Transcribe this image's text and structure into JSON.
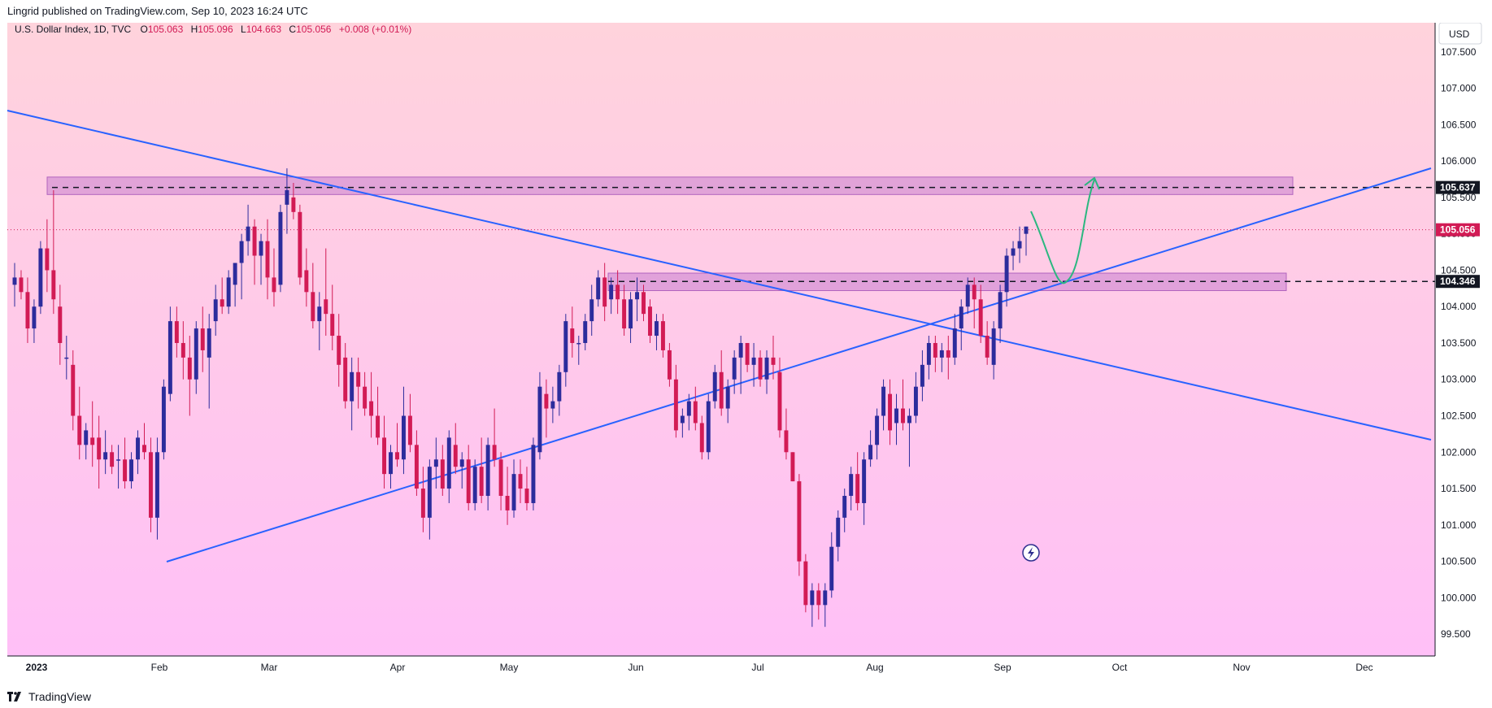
{
  "header": {
    "published": "Lingrid published on TradingView.com, Sep 10, 2023 16:24 UTC"
  },
  "footer": {
    "brand": "TradingView"
  },
  "colors": {
    "up": "#2c2c9c",
    "down": "#d21b55",
    "trendline": "#2962ff",
    "zone": "#c97fd0",
    "arrow": "#2bb77f",
    "bg_top": "#ffd1dc",
    "bg_bottom": "#ffc0f6"
  },
  "chart_data": {
    "type": "candlestick",
    "symbol": "U.S. Dollar Index, 1D, TVC",
    "ohlc": {
      "o_label": "O",
      "o": "105.063",
      "h_label": "H",
      "h": "105.096",
      "l_label": "L",
      "l": "104.663",
      "c_label": "C",
      "c": "105.056",
      "change": "+0.008 (+0.01%)"
    },
    "currency_button": "USD",
    "y_ticks": [
      "107.500",
      "107.000",
      "106.500",
      "106.000",
      "105.500",
      "105.000",
      "104.500",
      "104.000",
      "103.500",
      "103.000",
      "102.500",
      "102.000",
      "101.500",
      "101.000",
      "100.500",
      "100.000",
      "99.500"
    ],
    "y_range": [
      99.2,
      107.9
    ],
    "x_labels": [
      "2023",
      "Feb",
      "Mar",
      "Apr",
      "May",
      "Jun",
      "Jul",
      "Aug",
      "Sep",
      "Oct",
      "Nov",
      "Dec"
    ],
    "price_labels": [
      {
        "text": "105.637",
        "value": 105.637,
        "color": "#131722"
      },
      {
        "text": "105.056",
        "value": 105.056,
        "color": "#d21b55"
      },
      {
        "text": "104.346",
        "value": 104.346,
        "color": "#131722"
      }
    ],
    "candles": [
      [
        104.3,
        104.6,
        104.0,
        104.4
      ],
      [
        104.4,
        104.5,
        104.1,
        104.2
      ],
      [
        104.2,
        104.4,
        103.5,
        103.7
      ],
      [
        103.7,
        104.1,
        103.5,
        104.0
      ],
      [
        104.0,
        104.9,
        103.9,
        104.8
      ],
      [
        104.8,
        105.2,
        104.2,
        104.5
      ],
      [
        104.5,
        105.6,
        103.9,
        104.1
      ],
      [
        104.0,
        104.3,
        103.2,
        103.5
      ],
      [
        103.3,
        103.6,
        103.0,
        103.3
      ],
      [
        103.2,
        103.4,
        102.3,
        102.5
      ],
      [
        102.5,
        102.9,
        101.9,
        102.1
      ],
      [
        102.1,
        102.4,
        101.9,
        102.3
      ],
      [
        102.2,
        102.7,
        101.8,
        102.1
      ],
      [
        102.2,
        102.5,
        101.5,
        101.9
      ],
      [
        101.9,
        102.3,
        101.7,
        102.0
      ],
      [
        102.0,
        102.1,
        101.7,
        101.8
      ],
      [
        101.9,
        102.1,
        101.5,
        101.9
      ],
      [
        101.9,
        102.2,
        101.5,
        101.6
      ],
      [
        101.6,
        102.0,
        101.5,
        101.9
      ],
      [
        101.9,
        102.3,
        101.7,
        102.2
      ],
      [
        102.1,
        102.4,
        101.9,
        102.0
      ],
      [
        102.0,
        102.2,
        100.9,
        101.1
      ],
      [
        101.1,
        102.2,
        100.8,
        102.0
      ],
      [
        102.0,
        103.0,
        101.9,
        102.9
      ],
      [
        102.8,
        104.0,
        102.7,
        103.8
      ],
      [
        103.8,
        104.0,
        103.3,
        103.5
      ],
      [
        103.5,
        103.8,
        103.0,
        103.3
      ],
      [
        103.3,
        103.6,
        102.5,
        103.0
      ],
      [
        103.0,
        103.8,
        102.8,
        103.7
      ],
      [
        103.7,
        104.0,
        103.1,
        103.4
      ],
      [
        103.3,
        103.9,
        102.6,
        103.7
      ],
      [
        103.8,
        104.3,
        103.6,
        104.1
      ],
      [
        104.1,
        104.4,
        103.9,
        104.0
      ],
      [
        104.0,
        104.5,
        103.9,
        104.4
      ],
      [
        104.3,
        104.6,
        104.0,
        104.6
      ],
      [
        104.6,
        105.0,
        104.1,
        104.9
      ],
      [
        104.9,
        105.4,
        104.7,
        105.1
      ],
      [
        105.1,
        105.2,
        104.3,
        104.7
      ],
      [
        104.7,
        105.0,
        104.3,
        104.9
      ],
      [
        104.9,
        105.2,
        104.1,
        104.4
      ],
      [
        104.4,
        104.8,
        104.0,
        104.2
      ],
      [
        104.3,
        105.4,
        104.2,
        105.3
      ],
      [
        105.4,
        105.9,
        105.0,
        105.6
      ],
      [
        105.5,
        105.7,
        105.2,
        105.3
      ],
      [
        105.3,
        105.4,
        104.3,
        104.4
      ],
      [
        104.5,
        104.8,
        104.0,
        104.2
      ],
      [
        104.2,
        104.6,
        103.7,
        103.8
      ],
      [
        103.8,
        104.2,
        103.4,
        104.0
      ],
      [
        104.1,
        104.8,
        103.6,
        103.9
      ],
      [
        103.9,
        104.3,
        103.4,
        103.6
      ],
      [
        103.6,
        103.9,
        102.9,
        103.2
      ],
      [
        103.3,
        103.5,
        102.6,
        102.7
      ],
      [
        102.7,
        103.3,
        102.3,
        103.1
      ],
      [
        103.1,
        103.3,
        102.6,
        102.9
      ],
      [
        102.9,
        103.1,
        102.5,
        102.6
      ],
      [
        102.7,
        103.1,
        102.2,
        102.5
      ],
      [
        102.5,
        102.9,
        102.1,
        102.2
      ],
      [
        102.2,
        102.5,
        101.5,
        101.7
      ],
      [
        101.7,
        102.1,
        101.5,
        102.0
      ],
      [
        102.0,
        102.4,
        101.8,
        101.9
      ],
      [
        101.9,
        102.9,
        101.7,
        102.5
      ],
      [
        102.5,
        102.8,
        102.0,
        102.1
      ],
      [
        102.1,
        102.3,
        101.4,
        101.5
      ],
      [
        101.5,
        101.8,
        100.9,
        101.1
      ],
      [
        101.1,
        101.9,
        100.8,
        101.8
      ],
      [
        101.8,
        102.2,
        101.5,
        101.9
      ],
      [
        101.9,
        102.1,
        101.4,
        101.5
      ],
      [
        101.5,
        102.3,
        101.3,
        102.2
      ],
      [
        102.1,
        102.4,
        101.7,
        101.8
      ],
      [
        101.8,
        102.0,
        101.5,
        101.9
      ],
      [
        101.9,
        102.1,
        101.2,
        101.3
      ],
      [
        101.3,
        101.9,
        101.2,
        101.8
      ],
      [
        101.8,
        102.2,
        101.3,
        101.4
      ],
      [
        101.4,
        102.2,
        101.2,
        102.1
      ],
      [
        102.1,
        102.6,
        101.8,
        101.9
      ],
      [
        101.9,
        102.0,
        101.2,
        101.4
      ],
      [
        101.4,
        101.8,
        101.0,
        101.2
      ],
      [
        101.2,
        101.9,
        101.1,
        101.7
      ],
      [
        101.7,
        101.9,
        101.3,
        101.5
      ],
      [
        101.5,
        101.8,
        101.2,
        101.3
      ],
      [
        101.3,
        102.2,
        101.2,
        102.1
      ],
      [
        102.0,
        103.1,
        101.9,
        102.9
      ],
      [
        102.8,
        103.0,
        102.2,
        102.6
      ],
      [
        102.6,
        102.9,
        102.4,
        102.7
      ],
      [
        102.7,
        103.2,
        102.5,
        103.1
      ],
      [
        103.1,
        103.9,
        102.9,
        103.8
      ],
      [
        103.7,
        104.0,
        103.3,
        103.5
      ],
      [
        103.5,
        103.6,
        103.2,
        103.5
      ],
      [
        103.5,
        103.9,
        103.4,
        103.8
      ],
      [
        103.8,
        104.3,
        103.6,
        104.1
      ],
      [
        104.1,
        104.5,
        104.0,
        104.4
      ],
      [
        104.4,
        104.6,
        103.8,
        104.0
      ],
      [
        104.1,
        104.4,
        103.9,
        104.3
      ],
      [
        104.3,
        104.5,
        103.9,
        104.1
      ],
      [
        104.1,
        104.3,
        103.6,
        103.7
      ],
      [
        103.7,
        104.2,
        103.5,
        104.1
      ],
      [
        104.1,
        104.4,
        103.8,
        104.2
      ],
      [
        104.2,
        104.3,
        103.8,
        103.9
      ],
      [
        104.0,
        104.1,
        103.5,
        103.6
      ],
      [
        103.6,
        103.9,
        103.4,
        103.8
      ],
      [
        103.8,
        103.9,
        103.3,
        103.4
      ],
      [
        103.4,
        103.5,
        102.9,
        103.0
      ],
      [
        103.0,
        103.2,
        102.2,
        102.3
      ],
      [
        102.4,
        102.6,
        102.2,
        102.5
      ],
      [
        102.5,
        102.8,
        102.3,
        102.7
      ],
      [
        102.7,
        102.9,
        102.3,
        102.4
      ],
      [
        102.4,
        102.5,
        101.9,
        102.0
      ],
      [
        102.0,
        102.8,
        101.9,
        102.7
      ],
      [
        102.7,
        103.2,
        102.6,
        103.1
      ],
      [
        103.1,
        103.4,
        102.5,
        102.6
      ],
      [
        102.6,
        103.0,
        102.4,
        102.9
      ],
      [
        103.0,
        103.4,
        102.8,
        103.3
      ],
      [
        103.3,
        103.6,
        102.8,
        103.5
      ],
      [
        103.5,
        103.5,
        103.1,
        103.2
      ],
      [
        103.2,
        103.5,
        102.9,
        103.3
      ],
      [
        103.3,
        103.4,
        102.9,
        103.0
      ],
      [
        103.0,
        103.4,
        102.8,
        103.3
      ],
      [
        103.3,
        103.6,
        103.0,
        103.2
      ],
      [
        103.1,
        103.3,
        102.2,
        102.3
      ],
      [
        102.3,
        102.6,
        101.9,
        102.0
      ],
      [
        102.0,
        102.0,
        101.6,
        101.6
      ],
      [
        101.6,
        101.7,
        100.3,
        100.5
      ],
      [
        100.5,
        100.6,
        99.8,
        99.9
      ],
      [
        99.9,
        100.2,
        99.6,
        100.1
      ],
      [
        100.1,
        100.2,
        99.7,
        99.9
      ],
      [
        99.9,
        100.2,
        99.6,
        100.1
      ],
      [
        100.1,
        100.9,
        100.0,
        100.7
      ],
      [
        100.7,
        101.2,
        100.5,
        101.1
      ],
      [
        101.1,
        101.5,
        100.9,
        101.4
      ],
      [
        101.4,
        101.8,
        101.2,
        101.7
      ],
      [
        101.7,
        102.0,
        101.2,
        101.3
      ],
      [
        101.3,
        102.0,
        101.0,
        101.9
      ],
      [
        101.9,
        102.3,
        101.8,
        102.1
      ],
      [
        102.1,
        102.6,
        101.9,
        102.5
      ],
      [
        102.5,
        103.0,
        102.3,
        102.9
      ],
      [
        102.8,
        103.0,
        102.1,
        102.3
      ],
      [
        102.4,
        102.8,
        102.1,
        102.6
      ],
      [
        102.6,
        103.0,
        102.3,
        102.4
      ],
      [
        102.4,
        102.6,
        101.8,
        102.5
      ],
      [
        102.5,
        103.1,
        102.4,
        102.9
      ],
      [
        102.9,
        103.4,
        102.7,
        103.2
      ],
      [
        103.2,
        103.6,
        103.0,
        103.5
      ],
      [
        103.5,
        103.6,
        103.1,
        103.3
      ],
      [
        103.3,
        103.5,
        103.1,
        103.4
      ],
      [
        103.4,
        103.6,
        103.0,
        103.3
      ],
      [
        103.3,
        103.9,
        103.2,
        103.7
      ],
      [
        103.7,
        104.1,
        103.4,
        104.0
      ],
      [
        104.0,
        104.4,
        103.9,
        104.3
      ],
      [
        104.3,
        104.4,
        103.7,
        104.1
      ],
      [
        104.1,
        104.3,
        103.5,
        103.6
      ],
      [
        103.6,
        103.8,
        103.2,
        103.3
      ],
      [
        103.2,
        103.8,
        103.0,
        103.7
      ],
      [
        103.7,
        104.3,
        103.5,
        104.2
      ],
      [
        104.2,
        104.8,
        104.0,
        104.7
      ],
      [
        104.7,
        104.9,
        104.5,
        104.8
      ],
      [
        104.8,
        105.1,
        104.6,
        104.9
      ],
      [
        105.0,
        105.1,
        104.7,
        105.1
      ]
    ],
    "zones": [
      {
        "name": "resistance",
        "top": 105.78,
        "bottom": 105.54
      },
      {
        "name": "support",
        "top": 104.46,
        "bottom": 104.22
      }
    ],
    "hlines": [
      105.637,
      104.346
    ]
  }
}
